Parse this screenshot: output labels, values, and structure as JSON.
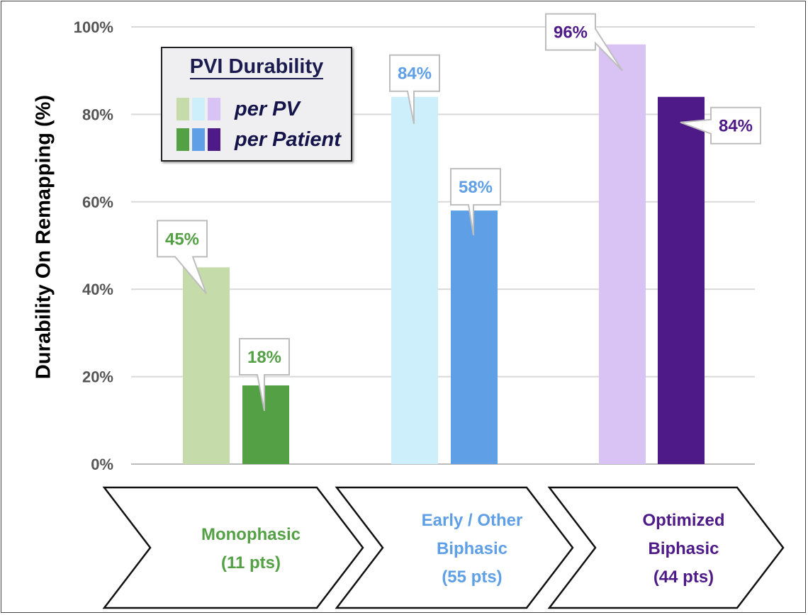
{
  "chart_data": {
    "type": "bar",
    "ylabel": "Durability On Remapping (%)",
    "ylim": [
      0,
      100
    ],
    "yticks": [
      "0%",
      "20%",
      "40%",
      "60%",
      "80%",
      "100%"
    ],
    "grid": true,
    "legend": {
      "title": "PVI Durability",
      "placement": "top-left",
      "entries": [
        {
          "label": "per PV",
          "colors": [
            "#c5dcaa",
            "#cdeefb",
            "#d9c3f5"
          ]
        },
        {
          "label": "per Patient",
          "colors": [
            "#53a045",
            "#5e9fe6",
            "#4e1a87"
          ]
        }
      ]
    },
    "categories": [
      {
        "lines": [
          "Monophasic",
          "(11 pts)"
        ],
        "color": "#53a045"
      },
      {
        "lines": [
          "Early / Other",
          "Biphasic",
          "(55 pts)"
        ],
        "color": "#5e9fe6"
      },
      {
        "lines": [
          "Optimized",
          "Biphasic",
          "(44 pts)"
        ],
        "color": "#4e1a87"
      }
    ],
    "series": [
      {
        "name": "per PV",
        "values": [
          45,
          84,
          96
        ],
        "labels": [
          "45%",
          "84%",
          "96%"
        ],
        "colors": [
          "#c5dcaa",
          "#cdeefb",
          "#d9c3f5"
        ]
      },
      {
        "name": "per Patient",
        "values": [
          18,
          58,
          84
        ],
        "labels": [
          "18%",
          "58%",
          "84%"
        ],
        "colors": [
          "#53a045",
          "#5e9fe6",
          "#4e1a87"
        ]
      }
    ]
  }
}
